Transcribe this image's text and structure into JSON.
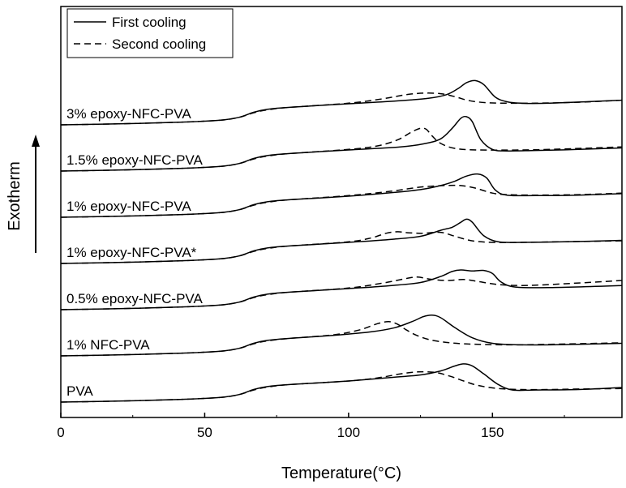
{
  "chart_data": {
    "type": "line",
    "title": "",
    "xlabel": "Temperature(°C)",
    "ylabel": "Exotherm",
    "xlim": [
      0,
      195
    ],
    "x_ticks": [
      0,
      50,
      100,
      150
    ],
    "grid": false,
    "legend_position": "top-left",
    "legend": [
      {
        "name": "First cooling",
        "style": "solid"
      },
      {
        "name": "Second cooling",
        "style": "dashed"
      }
    ],
    "series": [
      {
        "sample": "PVA",
        "offset": 0,
        "first_cooling": {
          "x": [
            0,
            20,
            40,
            55,
            62,
            67,
            72,
            80,
            100,
            115,
            125,
            132,
            137,
            140,
            143,
            147,
            152,
            157,
            165,
            180,
            195
          ],
          "y": [
            0,
            2,
            5,
            9,
            15,
            25,
            31,
            35,
            42,
            49,
            54,
            62,
            72,
            76,
            72,
            56,
            35,
            24,
            24,
            25,
            29
          ]
        },
        "second_cooling": {
          "x": [
            0,
            20,
            40,
            55,
            62,
            67,
            72,
            80,
            100,
            110,
            118,
            124,
            130,
            135,
            140,
            145,
            152,
            160,
            170,
            180,
            195
          ],
          "y": [
            0,
            2,
            5,
            9,
            15,
            24,
            30,
            35,
            42,
            48,
            56,
            60,
            59,
            52,
            42,
            33,
            27,
            25,
            25,
            26,
            27
          ]
        }
      },
      {
        "sample": "1% NFC-PVA",
        "offset": 1,
        "first_cooling": {
          "x": [
            0,
            20,
            40,
            55,
            62,
            67,
            72,
            80,
            95,
            108,
            116,
            122,
            126,
            129,
            132,
            137,
            143,
            150,
            160,
            180,
            195
          ],
          "y": [
            0,
            2,
            5,
            9,
            15,
            25,
            31,
            35,
            41,
            48,
            56,
            68,
            78,
            81,
            76,
            56,
            36,
            25,
            22,
            23,
            25
          ]
        },
        "second_cooling": {
          "x": [
            0,
            20,
            40,
            55,
            62,
            67,
            72,
            80,
            95,
            104,
            110,
            114,
            117,
            120,
            124,
            130,
            140,
            155,
            170,
            195
          ],
          "y": [
            0,
            2,
            5,
            9,
            15,
            24,
            30,
            35,
            42,
            52,
            64,
            68,
            63,
            52,
            40,
            30,
            24,
            22,
            23,
            26
          ]
        }
      },
      {
        "sample": "0.5% epoxy-NFC-PVA",
        "offset": 2,
        "first_cooling": {
          "x": [
            0,
            20,
            40,
            55,
            62,
            67,
            72,
            80,
            100,
            115,
            125,
            132,
            136,
            139,
            143,
            147,
            150,
            153,
            158,
            170,
            195
          ],
          "y": [
            0,
            2,
            5,
            9,
            15,
            25,
            31,
            35,
            42,
            48,
            54,
            66,
            76,
            79,
            77,
            78,
            72,
            55,
            45,
            44,
            48
          ]
        },
        "second_cooling": {
          "x": [
            0,
            20,
            40,
            55,
            62,
            67,
            72,
            80,
            100,
            112,
            120,
            124,
            128,
            134,
            140,
            145,
            152,
            160,
            170,
            195
          ],
          "y": [
            0,
            2,
            5,
            9,
            15,
            24,
            30,
            35,
            43,
            53,
            62,
            65,
            61,
            58,
            60,
            56,
            50,
            48,
            50,
            58
          ]
        }
      },
      {
        "sample": "1% epoxy-NFC-PVA*",
        "offset": 3,
        "first_cooling": {
          "x": [
            0,
            20,
            40,
            55,
            62,
            67,
            72,
            80,
            100,
            115,
            125,
            132,
            136,
            139,
            141,
            143,
            147,
            152,
            160,
            175,
            195
          ],
          "y": [
            0,
            2,
            5,
            9,
            15,
            25,
            31,
            35,
            42,
            48,
            54,
            66,
            72,
            82,
            88,
            82,
            55,
            43,
            42,
            43,
            46
          ]
        },
        "second_cooling": {
          "x": [
            0,
            20,
            40,
            55,
            62,
            67,
            72,
            80,
            100,
            108,
            113,
            117,
            121,
            126,
            132,
            137,
            143,
            150,
            160,
            195
          ],
          "y": [
            0,
            2,
            5,
            9,
            15,
            24,
            30,
            35,
            43,
            51,
            60,
            63,
            61,
            60,
            62,
            54,
            45,
            42,
            42,
            45
          ]
        }
      },
      {
        "sample": "1% epoxy-NFC-PVA",
        "offset": 4,
        "first_cooling": {
          "x": [
            0,
            20,
            40,
            55,
            62,
            67,
            72,
            80,
            100,
            115,
            125,
            132,
            137,
            141,
            145,
            148,
            151,
            155,
            165,
            180,
            195
          ],
          "y": [
            0,
            2,
            5,
            9,
            15,
            25,
            31,
            35,
            42,
            49,
            55,
            63,
            72,
            82,
            86,
            78,
            54,
            44,
            43,
            44,
            47
          ]
        },
        "second_cooling": {
          "x": [
            0,
            20,
            40,
            55,
            62,
            67,
            72,
            80,
            100,
            115,
            125,
            133,
            139,
            144,
            150,
            155,
            165,
            180,
            195
          ],
          "y": [
            0,
            2,
            5,
            9,
            15,
            24,
            30,
            35,
            43,
            52,
            60,
            63,
            63,
            58,
            48,
            45,
            44,
            45,
            48
          ]
        }
      },
      {
        "sample": "1.5% epoxy-NFC-PVA",
        "offset": 5,
        "first_cooling": {
          "x": [
            0,
            20,
            40,
            55,
            62,
            67,
            72,
            80,
            100,
            118,
            126,
            132,
            136,
            139,
            141,
            143,
            146,
            150,
            155,
            165,
            180,
            195
          ],
          "y": [
            0,
            2,
            5,
            9,
            15,
            25,
            31,
            35,
            42,
            48,
            54,
            64,
            85,
            105,
            108,
            98,
            62,
            43,
            40,
            41,
            43,
            46
          ]
        },
        "second_cooling": {
          "x": [
            0,
            20,
            40,
            55,
            62,
            67,
            72,
            80,
            100,
            110,
            117,
            122,
            125,
            127,
            129,
            132,
            137,
            145,
            160,
            175,
            195
          ],
          "y": [
            0,
            2,
            5,
            9,
            15,
            24,
            30,
            35,
            43,
            50,
            62,
            78,
            85,
            83,
            70,
            55,
            45,
            42,
            42,
            44,
            48
          ]
        }
      },
      {
        "sample": "3% epoxy-NFC-PVA",
        "offset": 6,
        "first_cooling": {
          "x": [
            0,
            20,
            40,
            55,
            62,
            67,
            72,
            80,
            100,
            118,
            128,
            134,
            138,
            141,
            144,
            147,
            151,
            155,
            160,
            170,
            195
          ],
          "y": [
            0,
            2,
            5,
            9,
            15,
            25,
            31,
            35,
            42,
            48,
            53,
            60,
            72,
            84,
            88,
            80,
            55,
            46,
            43,
            43,
            49
          ]
        },
        "second_cooling": {
          "x": [
            0,
            20,
            40,
            55,
            62,
            67,
            72,
            80,
            100,
            112,
            120,
            126,
            132,
            137,
            142,
            148,
            155,
            165,
            180,
            195
          ],
          "y": [
            0,
            2,
            5,
            9,
            15,
            24,
            30,
            35,
            43,
            52,
            60,
            63,
            62,
            56,
            48,
            44,
            43,
            43,
            45,
            49
          ]
        }
      }
    ],
    "curve_labels": [
      "PVA",
      "1% NFC-PVA",
      "0.5% epoxy-NFC-PVA",
      "1% epoxy-NFC-PVA*",
      "1% epoxy-NFC-PVA",
      "1.5% epoxy-NFC-PVA",
      "3% epoxy-NFC-PVA"
    ]
  }
}
